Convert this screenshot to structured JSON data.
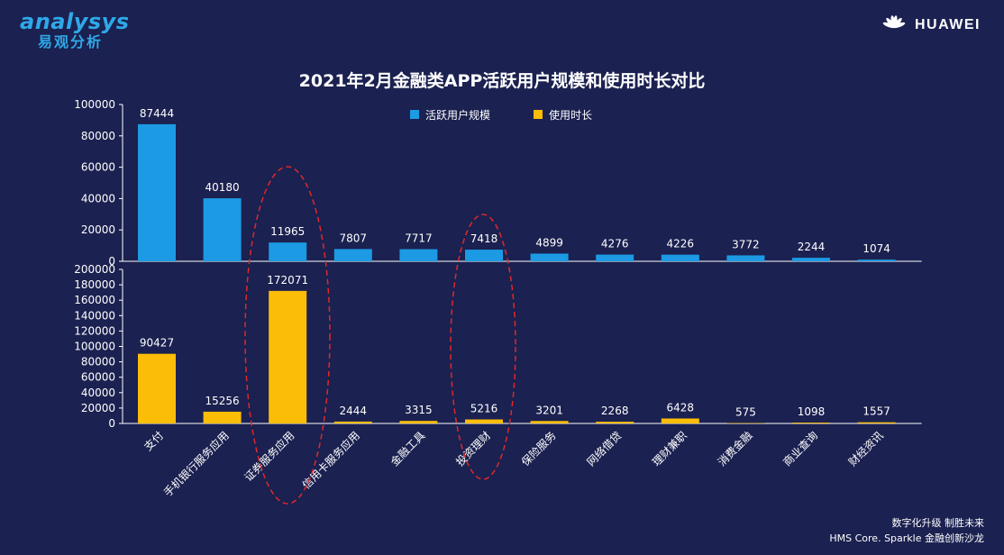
{
  "branding": {
    "analysys_logo_text": "analysys",
    "analysys_logo_cn": "易观分析",
    "huawei_logo_text": "HUAWEI"
  },
  "footer": {
    "line1": "数字化升级  制胜未来",
    "line2": "HMS Core. Sparkle 金融创新沙龙"
  },
  "colors": {
    "background": "#1b2150",
    "active_users": "#1c9ae4",
    "usage_time": "#fbbd08",
    "highlight": "#e0282b"
  },
  "chart_data": {
    "type": "bar",
    "title": "2021年2月金融类APP活跃用户规模和使用时长对比",
    "categories": [
      "支付",
      "手机银行服务应用",
      "证券服务应用",
      "信用卡服务应用",
      "金融工具",
      "投资理财",
      "保险服务",
      "网络借贷",
      "理财兼职",
      "消费金融",
      "商业查询",
      "财经资讯"
    ],
    "legend": [
      "活跃用户规模",
      "使用时长"
    ],
    "legend_position": "top-center",
    "series": [
      {
        "name": "活跃用户规模",
        "color": "#1c9ae4",
        "values": [
          87444,
          40180,
          11965,
          7807,
          7717,
          7418,
          4899,
          4276,
          4226,
          3772,
          2244,
          1074
        ],
        "ylim": [
          0,
          100000
        ],
        "yticks": [
          0,
          20000,
          40000,
          60000,
          80000,
          100000
        ]
      },
      {
        "name": "使用时长",
        "color": "#fbbd08",
        "values": [
          90427,
          15256,
          172071,
          2444,
          3315,
          5216,
          3201,
          2268,
          6428,
          575,
          1098,
          1557
        ],
        "ylim": [
          0,
          200000
        ],
        "yticks": [
          0,
          20000,
          40000,
          60000,
          80000,
          100000,
          120000,
          140000,
          160000,
          180000,
          200000
        ]
      }
    ],
    "highlighted_categories": [
      "证券服务应用",
      "投资理财"
    ]
  }
}
